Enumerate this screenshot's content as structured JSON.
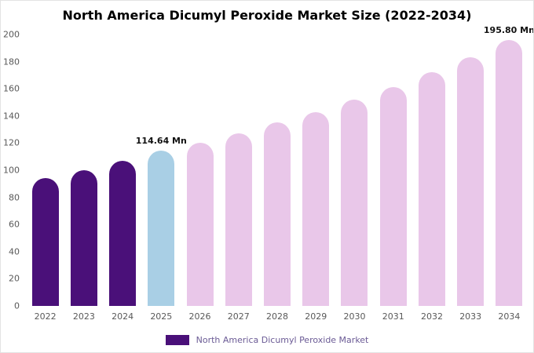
{
  "title": "North America Dicumyl Peroxide Market Size (2022-2034)",
  "legend": {
    "label": "North America Dicumyl Peroxide Market",
    "swatch_color": "#4a1079"
  },
  "colors": {
    "dark_purple": "#4a1079",
    "light_blue": "#a9cfe5",
    "light_pink": "#e9c7e9",
    "axis_text": "#595959",
    "annotation_text": "#111111"
  },
  "chart_data": {
    "type": "bar",
    "title": "North America Dicumyl Peroxide Market Size (2022-2034)",
    "xlabel": "",
    "ylabel": "",
    "categories": [
      "2022",
      "2023",
      "2024",
      "2025",
      "2026",
      "2027",
      "2028",
      "2029",
      "2030",
      "2031",
      "2032",
      "2033",
      "2034"
    ],
    "values": [
      94,
      100,
      107,
      114.64,
      120,
      127,
      135,
      143,
      152,
      161,
      172,
      183,
      195.8
    ],
    "bar_colors": [
      "#4a1079",
      "#4a1079",
      "#4a1079",
      "#a9cfe5",
      "#e9c7e9",
      "#e9c7e9",
      "#e9c7e9",
      "#e9c7e9",
      "#e9c7e9",
      "#e9c7e9",
      "#e9c7e9",
      "#e9c7e9",
      "#e9c7e9"
    ],
    "annotations": [
      {
        "category": "2025",
        "text": "114.64 Mn"
      },
      {
        "category": "2034",
        "text": "195.80 Mn"
      }
    ],
    "ylim": [
      0,
      200
    ],
    "ytick_step": 20,
    "grid": false,
    "legend_position": "bottom",
    "units": "Mn"
  }
}
